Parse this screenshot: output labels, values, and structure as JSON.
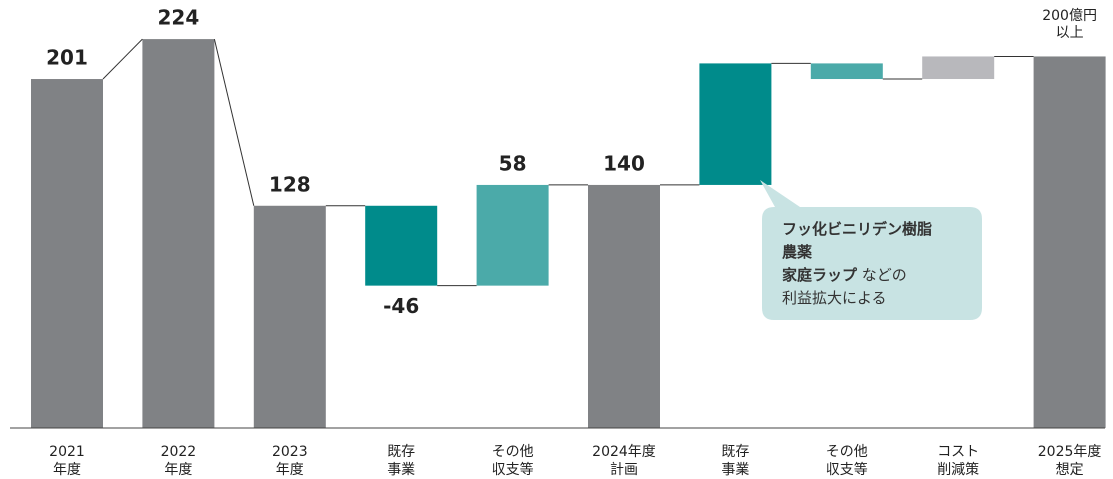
{
  "chart_data": {
    "type": "waterfall",
    "categories": [
      [
        "2021",
        "年度"
      ],
      [
        "2022",
        "年度"
      ],
      [
        "2023",
        "年度"
      ],
      [
        "既存",
        "事業"
      ],
      [
        "その他",
        "収支等"
      ],
      [
        "2024年度",
        "計画"
      ],
      [
        "既存",
        "事業"
      ],
      [
        "その他",
        "収支等"
      ],
      [
        "コスト",
        "削減策"
      ],
      [
        "2025年度",
        "想定"
      ]
    ],
    "values": [
      201,
      224,
      128,
      -46,
      58,
      140,
      70,
      -9,
      13,
      214
    ],
    "value_labels": [
      "201",
      "224",
      "128",
      "-46",
      "58",
      "140",
      null,
      null,
      null,
      null
    ],
    "measure": [
      "total",
      "total",
      "total",
      "relative",
      "relative",
      "total",
      "relative",
      "relative",
      "relative",
      "total"
    ],
    "colors": [
      "#808285",
      "#808285",
      "#808285",
      "#008b8b",
      "#4baaa9",
      "#808285",
      "#008b8b",
      "#4baaa9",
      "#b8b8bc",
      "#808285"
    ],
    "ylim": [
      0,
      235
    ],
    "annotations": [
      {
        "index": 9,
        "lines": [
          "200億円",
          "以上"
        ]
      }
    ],
    "callout": {
      "index": 6,
      "lines": [
        [
          "フッ化ビニリデン樹脂"
        ],
        [
          "農薬"
        ],
        [
          "家庭ラップ",
          " などの"
        ],
        [
          "利益拡大による"
        ]
      ]
    }
  }
}
